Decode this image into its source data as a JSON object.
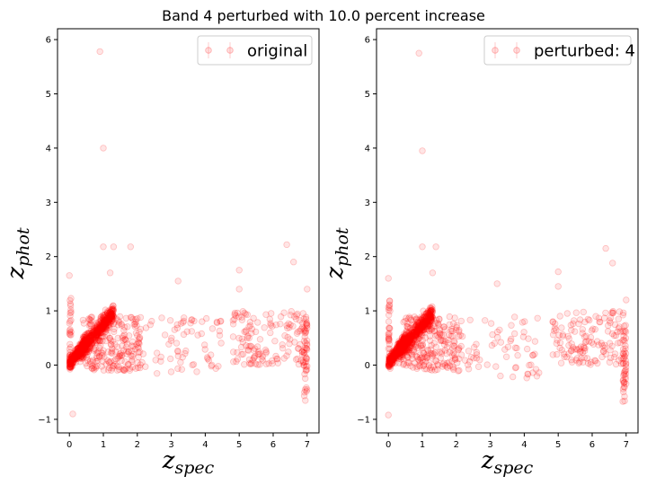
{
  "figure": {
    "title": "Band 4 perturbed with 10.0 percent increase"
  },
  "chart_data": [
    {
      "type": "scatter",
      "legend": "original",
      "legend_position": "top-right",
      "xlabel": {
        "base": "z",
        "sub": "spec"
      },
      "ylabel": {
        "base": "z",
        "sub": "phot"
      },
      "xlim": [
        -0.35,
        7.35
      ],
      "ylim": [
        -1.25,
        6.2
      ],
      "xticks": [
        0,
        1,
        2,
        3,
        4,
        5,
        6,
        7
      ],
      "yticks": [
        -1,
        0,
        1,
        2,
        3,
        4,
        5,
        6
      ],
      "color": "#ff0000",
      "clusters": [
        {
          "kind": "trend",
          "x_range": [
            0,
            0.5
          ],
          "slope": 0.85,
          "intercept": 0.02,
          "spread": 0.1,
          "n": 260
        },
        {
          "kind": "trend",
          "x_range": [
            0.3,
            1.3
          ],
          "slope": 0.75,
          "intercept": 0.0,
          "spread": 0.17,
          "n": 420
        },
        {
          "kind": "blob",
          "x_range": [
            0.4,
            2.1
          ],
          "y_range": [
            -0.1,
            0.9
          ],
          "n": 230
        },
        {
          "kind": "blob",
          "x_range": [
            2.0,
            4.5
          ],
          "y_range": [
            -0.25,
            0.9
          ],
          "n": 70
        },
        {
          "kind": "blob",
          "x_range": [
            4.8,
            7.0
          ],
          "y_range": [
            0.0,
            1.0
          ],
          "n": 140
        },
        {
          "kind": "column",
          "x_range": [
            6.9,
            7.0
          ],
          "y_range": [
            -0.7,
            1.0
          ],
          "n": 45
        },
        {
          "kind": "column",
          "x_range": [
            0.0,
            0.05
          ],
          "y_range": [
            -0.1,
            1.25
          ],
          "n": 35
        }
      ],
      "outliers": [
        {
          "x": 0.9,
          "y": 5.78
        },
        {
          "x": 1.0,
          "y": 4.0
        },
        {
          "x": 1.0,
          "y": 2.18
        },
        {
          "x": 1.3,
          "y": 2.18
        },
        {
          "x": 1.8,
          "y": 2.18
        },
        {
          "x": 6.4,
          "y": 2.22
        },
        {
          "x": 6.6,
          "y": 1.9
        },
        {
          "x": 5.0,
          "y": 1.75
        },
        {
          "x": 0.0,
          "y": 1.65
        },
        {
          "x": 1.2,
          "y": 1.7
        },
        {
          "x": 3.2,
          "y": 1.55
        },
        {
          "x": 0.1,
          "y": -0.9
        },
        {
          "x": 7.0,
          "y": 1.4
        },
        {
          "x": 5.0,
          "y": 1.4
        }
      ]
    },
    {
      "type": "scatter",
      "legend": "perturbed: 4",
      "legend_position": "top-right",
      "xlabel": {
        "base": "z",
        "sub": "spec"
      },
      "ylabel": {
        "base": "z",
        "sub": "phot"
      },
      "xlim": [
        -0.35,
        7.35
      ],
      "ylim": [
        -1.25,
        6.2
      ],
      "xticks": [
        0,
        1,
        2,
        3,
        4,
        5,
        6,
        7
      ],
      "yticks": [
        -1,
        0,
        1,
        2,
        3,
        4,
        5,
        6
      ],
      "color": "#ff0000",
      "clusters": [
        {
          "kind": "trend",
          "x_range": [
            0,
            0.5
          ],
          "slope": 0.9,
          "intercept": 0.02,
          "spread": 0.1,
          "n": 260
        },
        {
          "kind": "trend",
          "x_range": [
            0.3,
            1.3
          ],
          "slope": 0.72,
          "intercept": 0.02,
          "spread": 0.17,
          "n": 420
        },
        {
          "kind": "blob",
          "x_range": [
            0.4,
            2.1
          ],
          "y_range": [
            -0.1,
            0.9
          ],
          "n": 230
        },
        {
          "kind": "blob",
          "x_range": [
            2.0,
            4.5
          ],
          "y_range": [
            -0.25,
            0.9
          ],
          "n": 70
        },
        {
          "kind": "blob",
          "x_range": [
            4.8,
            7.0
          ],
          "y_range": [
            0.0,
            1.0
          ],
          "n": 140
        },
        {
          "kind": "column",
          "x_range": [
            6.9,
            7.0
          ],
          "y_range": [
            -0.7,
            1.0
          ],
          "n": 45
        },
        {
          "kind": "column",
          "x_range": [
            0.0,
            0.05
          ],
          "y_range": [
            -0.1,
            1.25
          ],
          "n": 35
        }
      ],
      "outliers": [
        {
          "x": 0.9,
          "y": 5.75
        },
        {
          "x": 1.0,
          "y": 3.95
        },
        {
          "x": 1.0,
          "y": 2.18
        },
        {
          "x": 1.4,
          "y": 2.18
        },
        {
          "x": 6.4,
          "y": 2.15
        },
        {
          "x": 6.6,
          "y": 1.88
        },
        {
          "x": 5.0,
          "y": 1.72
        },
        {
          "x": 0.0,
          "y": 1.6
        },
        {
          "x": 1.3,
          "y": 1.7
        },
        {
          "x": 3.2,
          "y": 1.5
        },
        {
          "x": 0.0,
          "y": -0.92
        },
        {
          "x": 7.0,
          "y": 1.2
        },
        {
          "x": 5.0,
          "y": 1.45
        }
      ]
    }
  ]
}
